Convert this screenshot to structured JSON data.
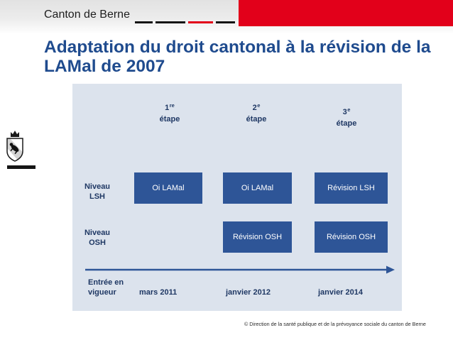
{
  "header": {
    "org_name": "Canton de Berne",
    "emblem_icon": "bern-coat-of-arms-icon"
  },
  "title": {
    "line1": "Adaptation du droit cantonal à la révision de la",
    "line2": "LAMal de 2007"
  },
  "diagram": {
    "stages": [
      {
        "number": "1",
        "suffix": "re",
        "label": "étape"
      },
      {
        "number": "2",
        "suffix": "e",
        "label": "étape"
      },
      {
        "number": "3",
        "suffix": "e",
        "label": "étape"
      }
    ],
    "rows": [
      {
        "label_line1": "Niveau",
        "label_line2": "LSH",
        "boxes": [
          "Oi LAMal",
          "Oi LAMal",
          "Révision LSH"
        ]
      },
      {
        "label_line1": "Niveau",
        "label_line2": "OSH",
        "boxes": [
          null,
          "Révision OSH",
          "Révision OSH"
        ]
      }
    ],
    "timeline": {
      "label_line1": "Entrée en",
      "label_line2": "vigueur",
      "arrow_icon": "arrow-right-icon",
      "dates": [
        "mars 2011",
        "janvier 2012",
        "janvier 2014"
      ]
    }
  },
  "footer": {
    "copyright": "© Direction de la santé publique et de la prévoyance sociale du canton de Berne"
  },
  "colors": {
    "brand_red": "#e2001a",
    "title_blue": "#1f4b8e",
    "box_blue": "#2e5597",
    "panel_bg": "#dce3ed",
    "diagram_text": "#1f3864"
  }
}
